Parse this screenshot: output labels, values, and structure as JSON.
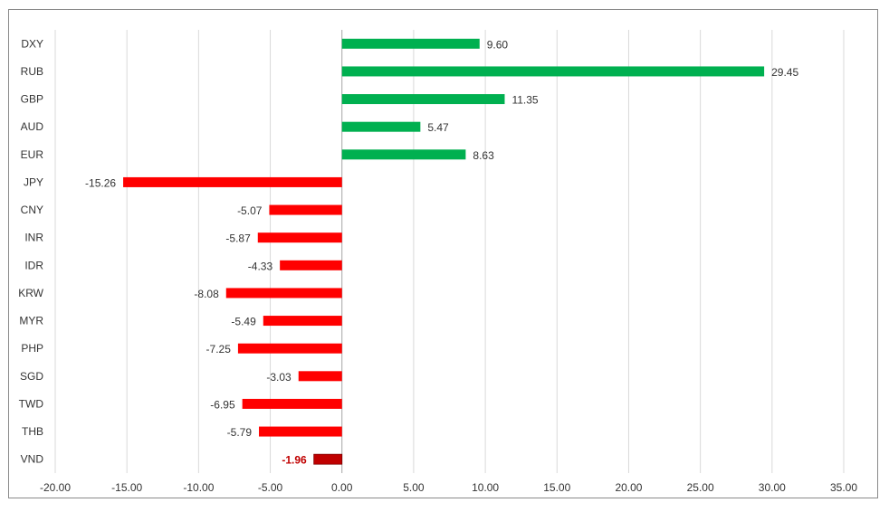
{
  "chart_data": {
    "type": "bar",
    "orientation": "horizontal",
    "title": "",
    "xlabel": "",
    "ylabel": "",
    "xlim": [
      -20,
      35
    ],
    "grid": true,
    "legend": "none",
    "x_ticks": [
      "-20.00",
      "-15.00",
      "-10.00",
      "-5.00",
      "0.00",
      "5.00",
      "10.00",
      "15.00",
      "20.00",
      "25.00",
      "30.00",
      "35.00"
    ],
    "categories": [
      "DXY",
      "RUB",
      "GBP",
      "AUD",
      "EUR",
      "JPY",
      "CNY",
      "INR",
      "IDR",
      "KRW",
      "MYR",
      "PHP",
      "SGD",
      "TWD",
      "THB",
      "VND"
    ],
    "values": [
      9.6,
      29.45,
      11.35,
      5.47,
      8.63,
      -15.26,
      -5.07,
      -5.87,
      -4.33,
      -8.08,
      -5.49,
      -7.25,
      -3.03,
      -6.95,
      -5.79,
      -1.96
    ],
    "labels": [
      "9.60",
      "29.45",
      "11.35",
      "5.47",
      "8.63",
      "-15.26",
      "-5.07",
      "-5.87",
      "-4.33",
      "-8.08",
      "-5.49",
      "-7.25",
      "-3.03",
      "-6.95",
      "-5.79",
      "-1.96"
    ],
    "highlight": "VND",
    "colors": {
      "positive": "#00b050",
      "negative": "#ff0000",
      "highlight_bar": "#c00000",
      "highlight_label": "#c00000",
      "grid": "#d9d9d9",
      "axis": "#a6a6a6",
      "text": "#333333"
    }
  }
}
